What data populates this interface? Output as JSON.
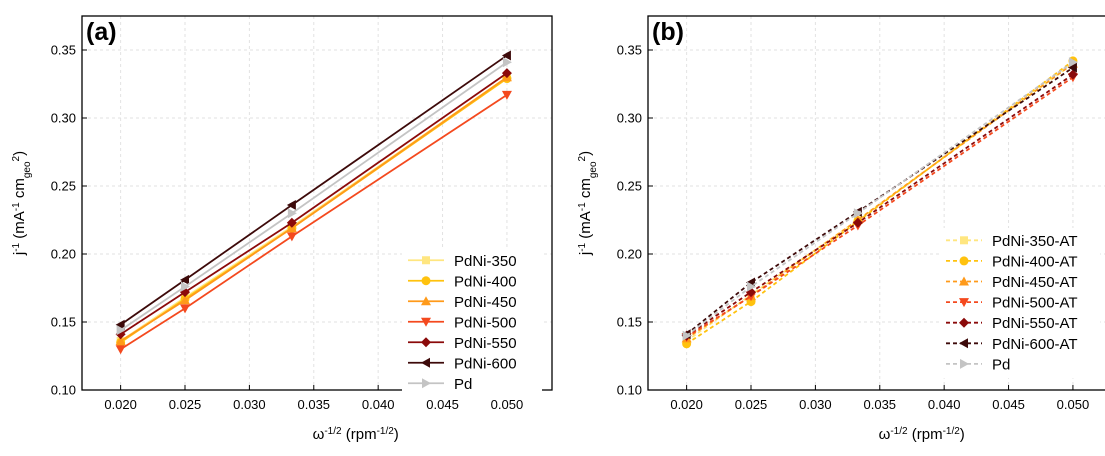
{
  "chart_data": [
    {
      "type": "line",
      "panel_label": "(a)",
      "xlabel": "ω",
      "xlabel_sup": "-1/2",
      "xlabel_unit": " (rpm",
      "xlabel_unit_sup": "-1/2",
      "xlabel_close": ")",
      "ylabel": "j",
      "ylabel_sup": "-1",
      "ylabel_unit": " (mA",
      "ylabel_unit_sup": "-1",
      "ylabel_cm": " cm",
      "ylabel_cm_sub": "geo",
      "ylabel_cm_sup": "2",
      "ylabel_close": ")",
      "xlim": [
        0.017,
        0.0535
      ],
      "ylim": [
        0.1,
        0.375
      ],
      "grid": true,
      "legend_position": "bottom-right",
      "xticks": [
        0.02,
        0.025,
        0.03,
        0.035,
        0.04,
        0.045,
        0.05
      ],
      "xtick_labels": [
        "0.020",
        "0.025",
        "0.030",
        "0.035",
        "0.040",
        "0.045",
        "0.050"
      ],
      "yticks": [
        0.1,
        0.15,
        0.2,
        0.25,
        0.3,
        0.35
      ],
      "ytick_labels": [
        "0.10",
        "0.15",
        "0.20",
        "0.25",
        "0.30",
        "0.35"
      ],
      "x": [
        0.02,
        0.025,
        0.0333,
        0.05
      ],
      "series": [
        {
          "name": "PdNi-350",
          "marker": "square",
          "color": "#FFE680",
          "dashed": false,
          "values": [
            0.136,
            0.168,
            0.22,
            0.33
          ]
        },
        {
          "name": "PdNi-400",
          "marker": "circle",
          "color": "#FFC20E",
          "dashed": false,
          "values": [
            0.135,
            0.167,
            0.219,
            0.329
          ]
        },
        {
          "name": "PdNi-450",
          "marker": "triangle-up",
          "color": "#FF9A1A",
          "dashed": false,
          "values": [
            0.136,
            0.166,
            0.219,
            0.33
          ]
        },
        {
          "name": "PdNi-500",
          "marker": "triangle-down",
          "color": "#F4491E",
          "dashed": false,
          "values": [
            0.13,
            0.16,
            0.213,
            0.317
          ]
        },
        {
          "name": "PdNi-550",
          "marker": "diamond",
          "color": "#8B0A0A",
          "dashed": false,
          "values": [
            0.141,
            0.172,
            0.223,
            0.333
          ]
        },
        {
          "name": "PdNi-600",
          "marker": "triangle-left",
          "color": "#3D0A0A",
          "dashed": false,
          "values": [
            0.148,
            0.181,
            0.236,
            0.346
          ]
        },
        {
          "name": "Pd",
          "marker": "triangle-right",
          "color": "#C4C4C4",
          "dashed": false,
          "values": [
            0.144,
            0.176,
            0.23,
            0.341
          ]
        }
      ]
    },
    {
      "type": "line",
      "panel_label": "(b)",
      "xlabel": "ω",
      "xlabel_sup": "-1/2",
      "xlabel_unit": " (rpm",
      "xlabel_unit_sup": "-1/2",
      "xlabel_close": ")",
      "ylabel": "j",
      "ylabel_sup": "-1",
      "ylabel_unit": " (mA",
      "ylabel_unit_sup": "-1",
      "ylabel_cm": " cm",
      "ylabel_cm_sub": "geo",
      "ylabel_cm_sup": "2",
      "ylabel_close": ")",
      "xlim": [
        0.017,
        0.0535
      ],
      "ylim": [
        0.1,
        0.375
      ],
      "grid": true,
      "legend_position": "bottom-right",
      "xticks": [
        0.02,
        0.025,
        0.03,
        0.035,
        0.04,
        0.045,
        0.05
      ],
      "xtick_labels": [
        "0.020",
        "0.025",
        "0.030",
        "0.035",
        "0.040",
        "0.045",
        "0.050"
      ],
      "yticks": [
        0.1,
        0.15,
        0.2,
        0.25,
        0.3,
        0.35
      ],
      "ytick_labels": [
        "0.10",
        "0.15",
        "0.20",
        "0.25",
        "0.30",
        "0.35"
      ],
      "x": [
        0.02,
        0.025,
        0.0333,
        0.05
      ],
      "series": [
        {
          "name": "PdNi-350-AT",
          "marker": "square",
          "color": "#FFE680",
          "dashed": true,
          "values": [
            0.136,
            0.17,
            0.225,
            0.34
          ]
        },
        {
          "name": "PdNi-400-AT",
          "marker": "circle",
          "color": "#FFC20E",
          "dashed": true,
          "values": [
            0.134,
            0.165,
            0.224,
            0.342
          ]
        },
        {
          "name": "PdNi-450-AT",
          "marker": "triangle-up",
          "color": "#FF9A1A",
          "dashed": true,
          "values": [
            0.138,
            0.169,
            0.225,
            0.34
          ]
        },
        {
          "name": "PdNi-500-AT",
          "marker": "triangle-down",
          "color": "#F4491E",
          "dashed": true,
          "values": [
            0.139,
            0.169,
            0.221,
            0.33
          ]
        },
        {
          "name": "PdNi-550-AT",
          "marker": "diamond",
          "color": "#8B0A0A",
          "dashed": true,
          "values": [
            0.14,
            0.172,
            0.223,
            0.332
          ]
        },
        {
          "name": "PdNi-600-AT",
          "marker": "triangle-left",
          "color": "#3D0A0A",
          "dashed": true,
          "values": [
            0.141,
            0.179,
            0.231,
            0.337
          ]
        },
        {
          "name": "Pd",
          "marker": "triangle-right",
          "color": "#C4C4C4",
          "dashed": true,
          "values": [
            0.14,
            0.176,
            0.23,
            0.341
          ]
        }
      ]
    }
  ]
}
